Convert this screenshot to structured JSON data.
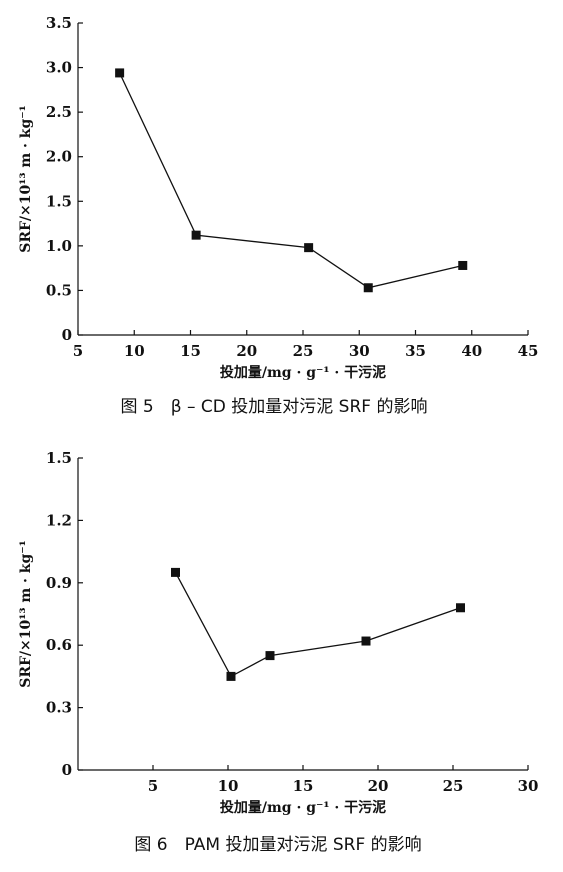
{
  "chart_data": [
    {
      "type": "line",
      "caption": "图 5　β – CD 投加量对污泥 SRF 的影响",
      "xlabel": "投加量/mg · g⁻¹ · 干污泥",
      "ylabel": "SRF/×10¹³ m · kg⁻¹",
      "xlim": [
        5,
        45
      ],
      "ylim": [
        0,
        3.5
      ],
      "xticks": [
        "5",
        "10",
        "15",
        "20",
        "25",
        "30",
        "35",
        "40",
        "45"
      ],
      "yticks": [
        "0",
        "0.5",
        "1.0",
        "1.5",
        "2.0",
        "2.5",
        "3.0",
        "3.5"
      ],
      "series": [
        {
          "x": [
            8.7,
            15.5,
            25.5,
            30.8,
            39.2
          ],
          "y": [
            2.94,
            1.12,
            0.98,
            0.53,
            0.78
          ]
        }
      ],
      "grid": false,
      "marker": "square"
    },
    {
      "type": "line",
      "caption": "图 6　PAM 投加量对污泥 SRF 的影响",
      "xlabel": "投加量/mg · g⁻¹ · 干污泥",
      "ylabel": "SRF/×10¹³ m · kg⁻¹",
      "xlim": [
        0,
        30
      ],
      "ylim": [
        0,
        1.5
      ],
      "xticks": [
        "5",
        "10",
        "15",
        "20",
        "25",
        "30"
      ],
      "yticks": [
        "0",
        "0.3",
        "0.6",
        "0.9",
        "1.2",
        "1.5"
      ],
      "series": [
        {
          "x": [
            6.5,
            10.2,
            12.8,
            19.2,
            25.5
          ],
          "y": [
            0.95,
            0.45,
            0.55,
            0.62,
            0.78
          ]
        }
      ],
      "grid": false,
      "marker": "square"
    }
  ]
}
